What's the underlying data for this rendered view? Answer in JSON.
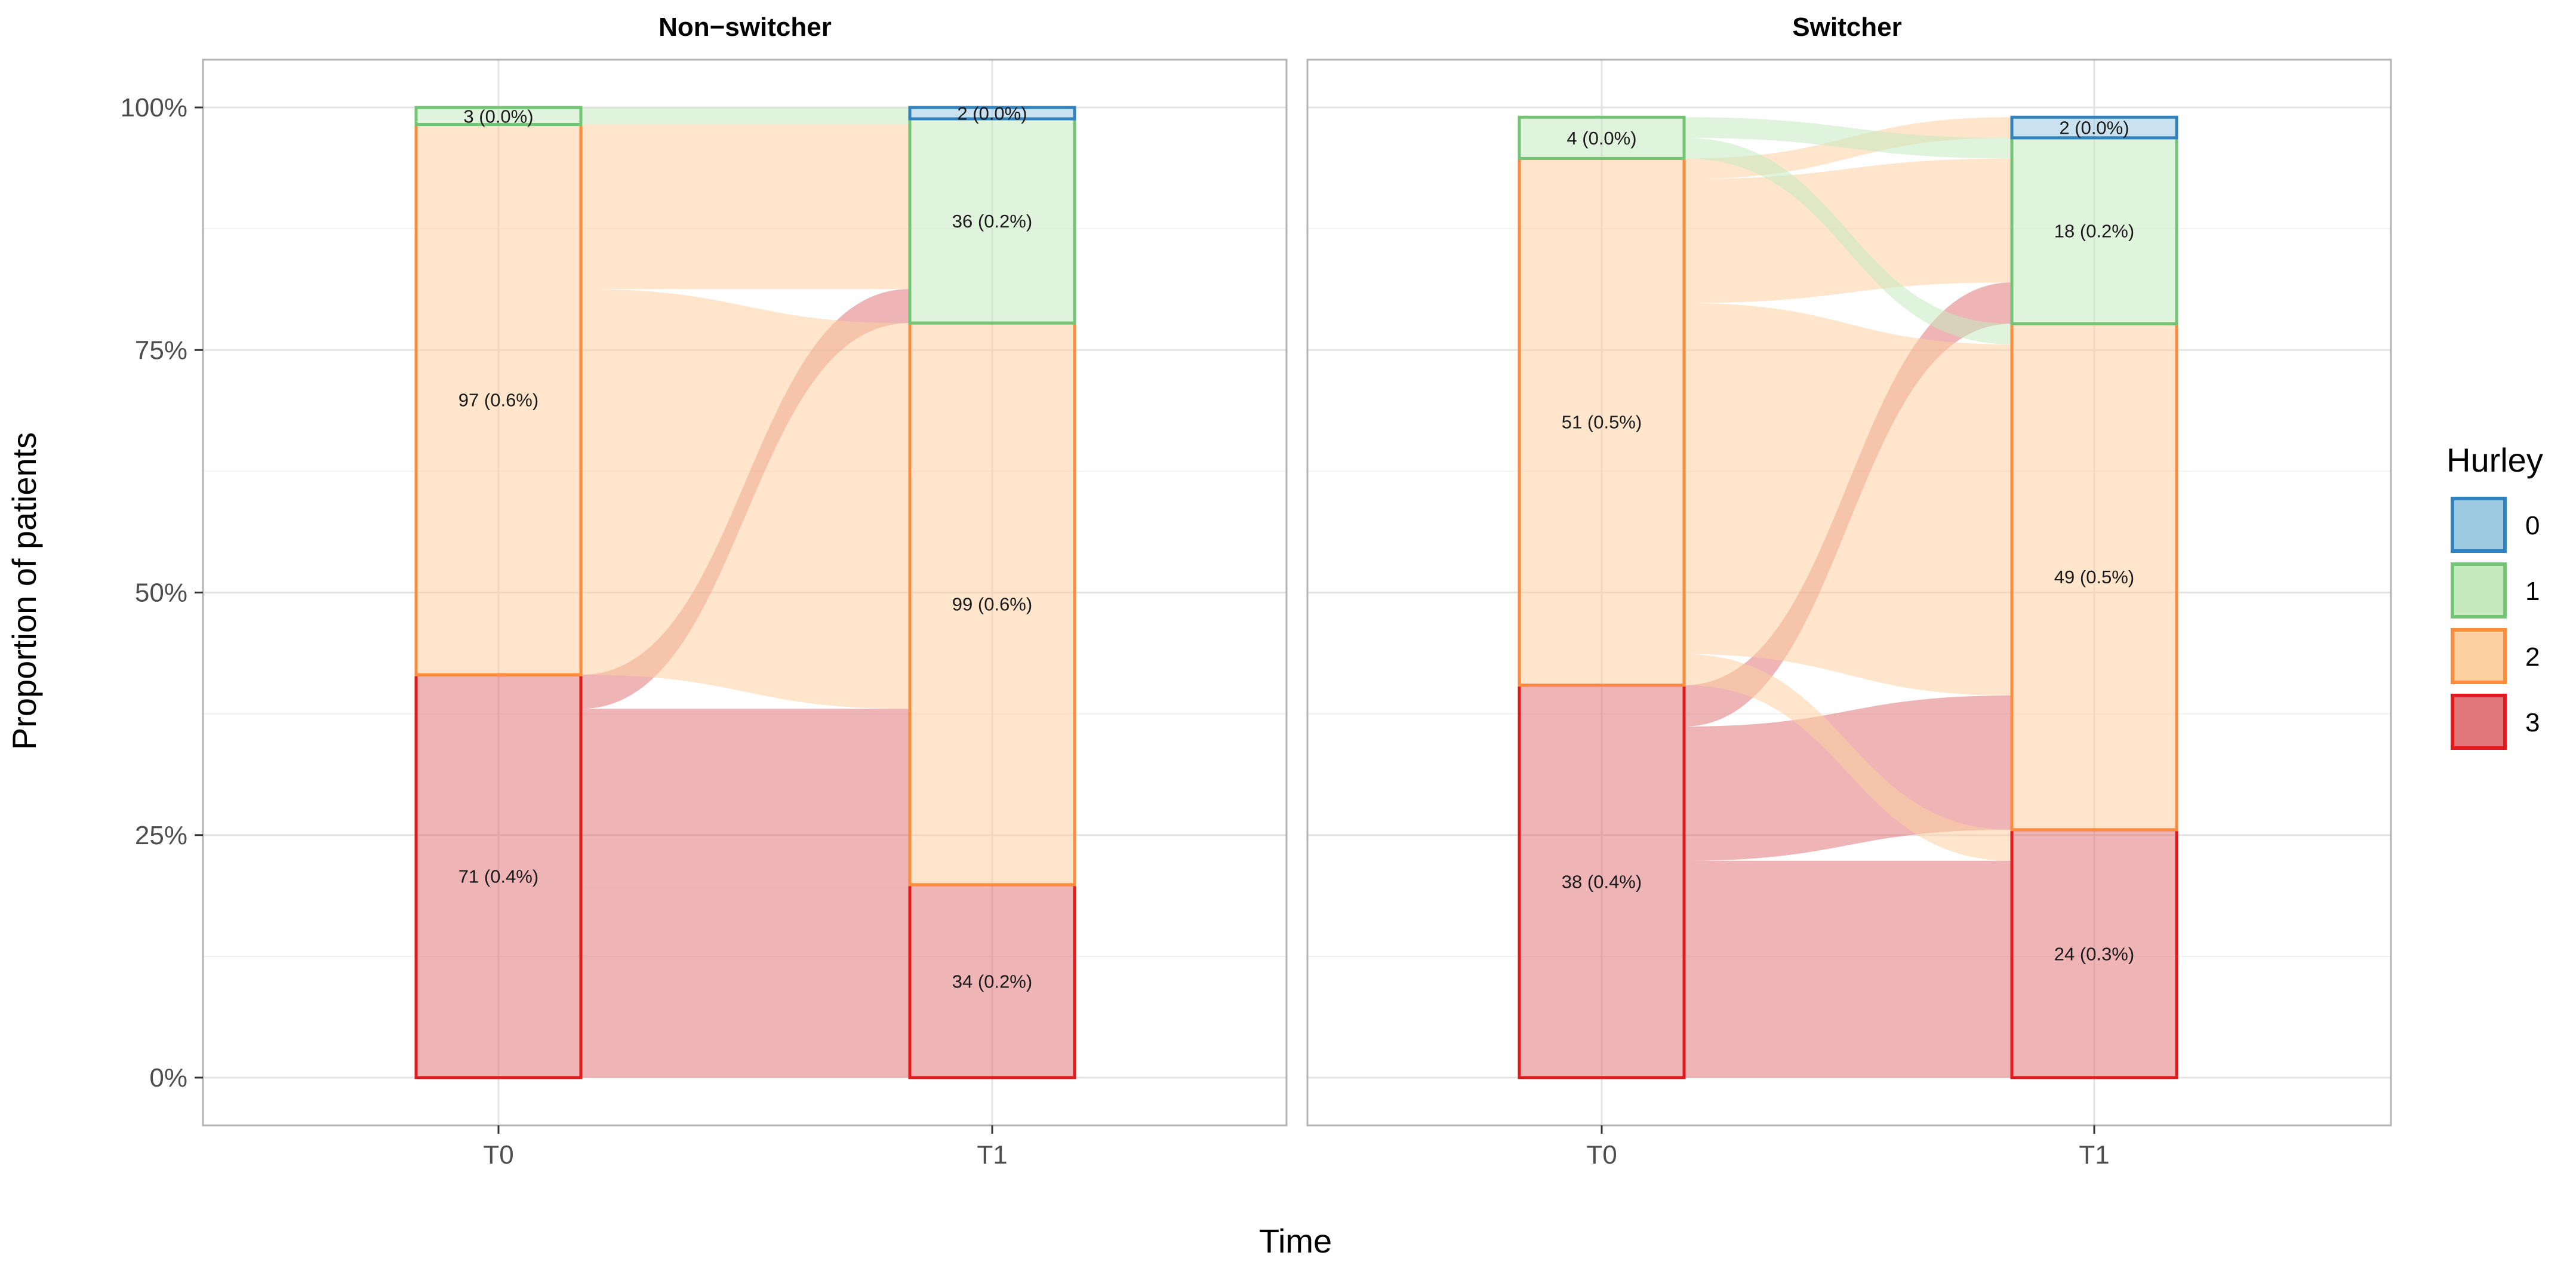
{
  "chart_data": {
    "type": "alluvial",
    "ylabel": "Proportion of patients",
    "xlabel": "Time",
    "y_ticks": [
      {
        "value": 0,
        "label": "0%"
      },
      {
        "value": 0.25,
        "label": "25%"
      },
      {
        "value": 0.5,
        "label": "50%"
      },
      {
        "value": 0.75,
        "label": "75%"
      },
      {
        "value": 1,
        "label": "100%"
      }
    ],
    "ylim": [
      0,
      1
    ],
    "x_categories": [
      "T0",
      "T1"
    ],
    "legend": {
      "title": "Hurley",
      "position": "right",
      "entries": [
        {
          "level": "0",
          "fill": "#9ecae1",
          "stroke": "#3182bd"
        },
        {
          "level": "1",
          "fill": "#c7e9c0",
          "stroke": "#74c476"
        },
        {
          "level": "2",
          "fill": "#fdd0a2",
          "stroke": "#fd8d3c"
        },
        {
          "level": "3",
          "fill": "#e0777a",
          "stroke": "#e31a1c"
        }
      ]
    },
    "panels": [
      {
        "title": "Non−switcher",
        "axis_top": 1.0,
        "strata": {
          "T0": [
            {
              "level": "3",
              "count": 71,
              "label": "71 (0.4%)"
            },
            {
              "level": "2",
              "count": 97,
              "label": "97 (0.6%)"
            },
            {
              "level": "1",
              "count": 3,
              "label": "3 (0.0%)"
            }
          ],
          "T1": [
            {
              "level": "3",
              "count": 34,
              "label": "34 (0.2%)"
            },
            {
              "level": "2",
              "count": 99,
              "label": "99 (0.6%)"
            },
            {
              "level": "1",
              "count": 36,
              "label": "36 (0.2%)"
            },
            {
              "level": "0",
              "count": 2,
              "label": "2 (0.0%)"
            }
          ]
        },
        "flows": [
          {
            "from": "3",
            "to": "3",
            "count": 34
          },
          {
            "from": "3",
            "to": "2",
            "count": 31
          },
          {
            "from": "3",
            "to": "1",
            "count": 6
          },
          {
            "from": "2",
            "to": "2",
            "count": 68
          },
          {
            "from": "2",
            "to": "1",
            "count": 29
          },
          {
            "from": "1",
            "to": "1",
            "count": 1
          },
          {
            "from": "1",
            "to": "0",
            "count": 2
          }
        ]
      },
      {
        "title": "Switcher",
        "axis_top": 0.99,
        "strata": {
          "T0": [
            {
              "level": "3",
              "count": 38,
              "label": "38 (0.4%)"
            },
            {
              "level": "2",
              "count": 51,
              "label": "51 (0.5%)"
            },
            {
              "level": "1",
              "count": 4,
              "label": "4 (0.0%)"
            }
          ],
          "T1": [
            {
              "level": "3",
              "count": 24,
              "label": "24 (0.3%)"
            },
            {
              "level": "2",
              "count": 49,
              "label": "49 (0.5%)"
            },
            {
              "level": "1",
              "count": 18,
              "label": "18 (0.2%)"
            },
            {
              "level": "0",
              "count": 2,
              "label": "2 (0.0%)"
            }
          ]
        },
        "flows": [
          {
            "from": "3",
            "to": "3",
            "count": 21
          },
          {
            "from": "3",
            "to": "2",
            "count": 13
          },
          {
            "from": "3",
            "to": "1",
            "count": 4
          },
          {
            "from": "2",
            "to": "3",
            "count": 3
          },
          {
            "from": "2",
            "to": "2",
            "count": 34
          },
          {
            "from": "2",
            "to": "1",
            "count": 12
          },
          {
            "from": "2",
            "to": "0",
            "count": 2
          },
          {
            "from": "1",
            "to": "2",
            "count": 2
          },
          {
            "from": "1",
            "to": "1",
            "count": 2
          }
        ]
      }
    ]
  }
}
